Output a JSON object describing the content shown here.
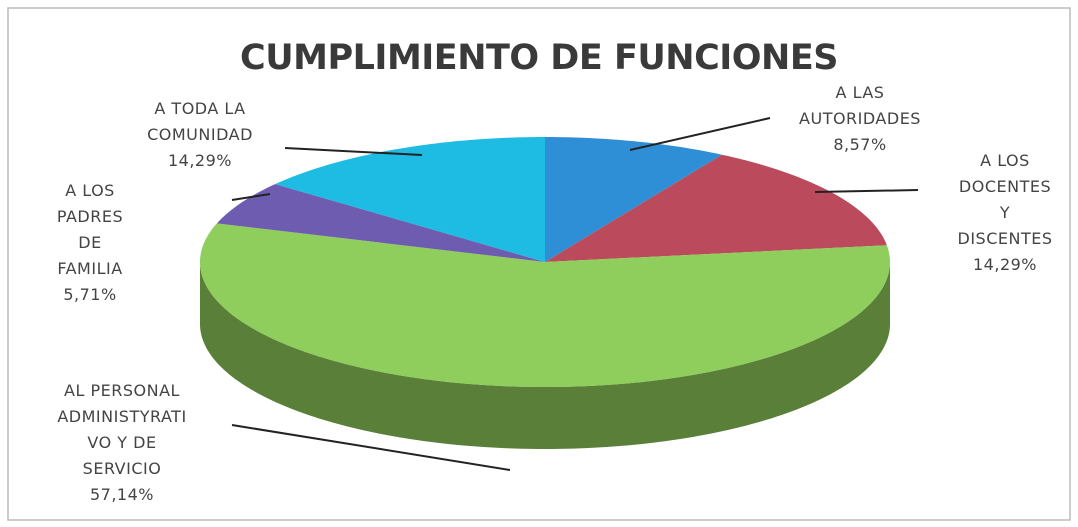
{
  "chart_data": {
    "type": "pie3d",
    "title": "CUMPLIMIENTO DE FUNCIONES",
    "categories": [
      "A LAS\nAUTORIDADES",
      "A LOS\nDOCENTES Y\nDISCENTES",
      "AL PERSONAL\nADMINISTYRATI\nVO Y DE\nSERVICIO",
      "A LOS\nPADRES\nDE\nFAMILIA",
      "A TODA LA\nCOMUNIDAD"
    ],
    "values": [
      8.57,
      14.29,
      57.14,
      5.71,
      14.29
    ],
    "value_labels": [
      "8,57%",
      "14,29%",
      "57,14%",
      "5,71%",
      "14,29%"
    ],
    "colors": [
      "#2f8fd6",
      "#bb4b5c",
      "#8fcd5c",
      "#6d5cb0",
      "#1ebbe3"
    ]
  }
}
